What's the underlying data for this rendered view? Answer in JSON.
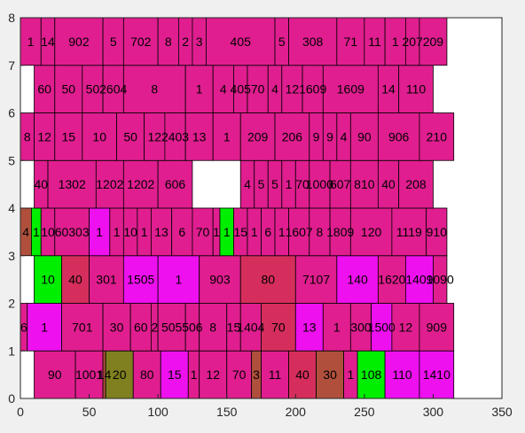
{
  "chart_data": {
    "type": "bar",
    "orientation": "horizontal-segments",
    "title": "",
    "xlabel": "",
    "ylabel": "",
    "xlim": [
      0,
      350
    ],
    "ylim": [
      0,
      8
    ],
    "grid": false,
    "legend": "none",
    "x_ticks": [
      0,
      50,
      100,
      150,
      200,
      250,
      300,
      350
    ],
    "y_ticks": [
      0,
      1,
      2,
      3,
      4,
      5,
      6,
      7,
      8
    ],
    "colors": {
      "pink": "#E01E8F",
      "magenta": "#EE10EE",
      "crimson": "#D62E5C",
      "brown": "#B0503C",
      "olive": "#808020",
      "green": "#00EE00",
      "plot_bg": "#ffffff",
      "figure_bg": "#f0f0f0",
      "axis": "#262626"
    },
    "segments": [
      {
        "row": 0,
        "x0": 10,
        "x1": 40,
        "color": "pink",
        "label": "90"
      },
      {
        "row": 0,
        "x0": 40,
        "x1": 60,
        "color": "pink",
        "label": "1001"
      },
      {
        "row": 0,
        "x0": 60,
        "x1": 62,
        "color": "brown",
        "label": "14"
      },
      {
        "row": 0,
        "x0": 62,
        "x1": 82,
        "color": "olive",
        "label": "20"
      },
      {
        "row": 0,
        "x0": 82,
        "x1": 102,
        "color": "pink",
        "label": "80"
      },
      {
        "row": 0,
        "x0": 102,
        "x1": 122,
        "color": "magenta",
        "label": "15"
      },
      {
        "row": 0,
        "x0": 122,
        "x1": 130,
        "color": "pink",
        "label": "1"
      },
      {
        "row": 0,
        "x0": 130,
        "x1": 150,
        "color": "pink",
        "label": "12"
      },
      {
        "row": 0,
        "x0": 150,
        "x1": 168,
        "color": "pink",
        "label": "70"
      },
      {
        "row": 0,
        "x0": 168,
        "x1": 175,
        "color": "brown",
        "label": "3"
      },
      {
        "row": 0,
        "x0": 175,
        "x1": 195,
        "color": "pink",
        "label": "11"
      },
      {
        "row": 0,
        "x0": 195,
        "x1": 215,
        "color": "crimson",
        "label": "40"
      },
      {
        "row": 0,
        "x0": 215,
        "x1": 235,
        "color": "brown",
        "label": "30"
      },
      {
        "row": 0,
        "x0": 235,
        "x1": 245,
        "color": "pink",
        "label": "1"
      },
      {
        "row": 0,
        "x0": 245,
        "x1": 265,
        "color": "green",
        "label": "108"
      },
      {
        "row": 0,
        "x0": 265,
        "x1": 290,
        "color": "magenta",
        "label": "110"
      },
      {
        "row": 0,
        "x0": 290,
        "x1": 315,
        "color": "magenta",
        "label": "1410"
      },
      {
        "row": 1,
        "x0": 0,
        "x1": 5,
        "color": "pink",
        "label": "6"
      },
      {
        "row": 1,
        "x0": 5,
        "x1": 30,
        "color": "magenta",
        "label": "1"
      },
      {
        "row": 1,
        "x0": 30,
        "x1": 60,
        "color": "pink",
        "label": "701"
      },
      {
        "row": 1,
        "x0": 60,
        "x1": 80,
        "color": "pink",
        "label": "30"
      },
      {
        "row": 1,
        "x0": 80,
        "x1": 95,
        "color": "pink",
        "label": "60"
      },
      {
        "row": 1,
        "x0": 95,
        "x1": 100,
        "color": "pink",
        "label": "2"
      },
      {
        "row": 1,
        "x0": 100,
        "x1": 120,
        "color": "pink",
        "label": "505"
      },
      {
        "row": 1,
        "x0": 120,
        "x1": 130,
        "color": "pink",
        "label": "506"
      },
      {
        "row": 1,
        "x0": 130,
        "x1": 150,
        "color": "pink",
        "label": "8"
      },
      {
        "row": 1,
        "x0": 150,
        "x1": 160,
        "color": "pink",
        "label": "15"
      },
      {
        "row": 1,
        "x0": 160,
        "x1": 175,
        "color": "pink",
        "label": "1404"
      },
      {
        "row": 1,
        "x0": 175,
        "x1": 200,
        "color": "crimson",
        "label": "70"
      },
      {
        "row": 1,
        "x0": 200,
        "x1": 220,
        "color": "magenta",
        "label": "13"
      },
      {
        "row": 1,
        "x0": 220,
        "x1": 240,
        "color": "pink",
        "label": "1"
      },
      {
        "row": 1,
        "x0": 240,
        "x1": 255,
        "color": "pink",
        "label": "300"
      },
      {
        "row": 1,
        "x0": 255,
        "x1": 270,
        "color": "magenta",
        "label": "1500"
      },
      {
        "row": 1,
        "x0": 270,
        "x1": 290,
        "color": "pink",
        "label": "12"
      },
      {
        "row": 1,
        "x0": 290,
        "x1": 315,
        "color": "pink",
        "label": "909"
      },
      {
        "row": 2,
        "x0": 10,
        "x1": 30,
        "color": "green",
        "label": "10"
      },
      {
        "row": 2,
        "x0": 30,
        "x1": 50,
        "color": "crimson",
        "label": "40"
      },
      {
        "row": 2,
        "x0": 50,
        "x1": 75,
        "color": "pink",
        "label": "301"
      },
      {
        "row": 2,
        "x0": 75,
        "x1": 100,
        "color": "magenta",
        "label": "1505"
      },
      {
        "row": 2,
        "x0": 100,
        "x1": 130,
        "color": "magenta",
        "label": "1"
      },
      {
        "row": 2,
        "x0": 130,
        "x1": 160,
        "color": "pink",
        "label": "903"
      },
      {
        "row": 2,
        "x0": 160,
        "x1": 200,
        "color": "crimson",
        "label": "80"
      },
      {
        "row": 2,
        "x0": 200,
        "x1": 230,
        "color": "pink",
        "label": "7107"
      },
      {
        "row": 2,
        "x0": 230,
        "x1": 260,
        "color": "magenta",
        "label": "140"
      },
      {
        "row": 2,
        "x0": 260,
        "x1": 280,
        "color": "pink",
        "label": "1620"
      },
      {
        "row": 2,
        "x0": 280,
        "x1": 300,
        "color": "magenta",
        "label": "1409"
      },
      {
        "row": 2,
        "x0": 300,
        "x1": 310,
        "color": "pink",
        "label": "1090"
      },
      {
        "row": 3,
        "x0": 0,
        "x1": 8,
        "color": "brown",
        "label": "4"
      },
      {
        "row": 3,
        "x0": 8,
        "x1": 15,
        "color": "green",
        "label": "1"
      },
      {
        "row": 3,
        "x0": 15,
        "x1": 25,
        "color": "pink",
        "label": "10"
      },
      {
        "row": 3,
        "x0": 25,
        "x1": 50,
        "color": "pink",
        "label": "60303"
      },
      {
        "row": 3,
        "x0": 50,
        "x1": 65,
        "color": "magenta",
        "label": "1"
      },
      {
        "row": 3,
        "x0": 65,
        "x1": 75,
        "color": "pink",
        "label": "1"
      },
      {
        "row": 3,
        "x0": 75,
        "x1": 85,
        "color": "pink",
        "label": "10"
      },
      {
        "row": 3,
        "x0": 85,
        "x1": 95,
        "color": "pink",
        "label": "1"
      },
      {
        "row": 3,
        "x0": 95,
        "x1": 110,
        "color": "pink",
        "label": "13"
      },
      {
        "row": 3,
        "x0": 110,
        "x1": 125,
        "color": "pink",
        "label": "6"
      },
      {
        "row": 3,
        "x0": 125,
        "x1": 140,
        "color": "pink",
        "label": "70"
      },
      {
        "row": 3,
        "x0": 140,
        "x1": 145,
        "color": "pink",
        "label": "1"
      },
      {
        "row": 3,
        "x0": 145,
        "x1": 155,
        "color": "green",
        "label": "1"
      },
      {
        "row": 3,
        "x0": 155,
        "x1": 165,
        "color": "pink",
        "label": "15"
      },
      {
        "row": 3,
        "x0": 165,
        "x1": 175,
        "color": "pink",
        "label": "1"
      },
      {
        "row": 3,
        "x0": 175,
        "x1": 185,
        "color": "pink",
        "label": "6"
      },
      {
        "row": 3,
        "x0": 185,
        "x1": 195,
        "color": "pink",
        "label": "1"
      },
      {
        "row": 3,
        "x0": 195,
        "x1": 210,
        "color": "pink",
        "label": "1607"
      },
      {
        "row": 3,
        "x0": 210,
        "x1": 225,
        "color": "pink",
        "label": "8"
      },
      {
        "row": 3,
        "x0": 225,
        "x1": 240,
        "color": "pink",
        "label": "1809"
      },
      {
        "row": 3,
        "x0": 240,
        "x1": 270,
        "color": "pink",
        "label": "120"
      },
      {
        "row": 3,
        "x0": 270,
        "x1": 295,
        "color": "pink",
        "label": "1119"
      },
      {
        "row": 3,
        "x0": 295,
        "x1": 310,
        "color": "pink",
        "label": "910"
      },
      {
        "row": 4,
        "x0": 10,
        "x1": 20,
        "color": "pink",
        "label": "40"
      },
      {
        "row": 4,
        "x0": 20,
        "x1": 55,
        "color": "pink",
        "label": "1302"
      },
      {
        "row": 4,
        "x0": 55,
        "x1": 75,
        "color": "pink",
        "label": "1202"
      },
      {
        "row": 4,
        "x0": 75,
        "x1": 100,
        "color": "pink",
        "label": "1202"
      },
      {
        "row": 4,
        "x0": 100,
        "x1": 125,
        "color": "pink",
        "label": "606"
      },
      {
        "row": 4,
        "x0": 160,
        "x1": 170,
        "color": "pink",
        "label": "4"
      },
      {
        "row": 4,
        "x0": 170,
        "x1": 180,
        "color": "pink",
        "label": "5"
      },
      {
        "row": 4,
        "x0": 180,
        "x1": 190,
        "color": "pink",
        "label": "5"
      },
      {
        "row": 4,
        "x0": 190,
        "x1": 200,
        "color": "pink",
        "label": "1"
      },
      {
        "row": 4,
        "x0": 200,
        "x1": 210,
        "color": "pink",
        "label": "70"
      },
      {
        "row": 4,
        "x0": 210,
        "x1": 225,
        "color": "pink",
        "label": "1000"
      },
      {
        "row": 4,
        "x0": 225,
        "x1": 240,
        "color": "pink",
        "label": "607"
      },
      {
        "row": 4,
        "x0": 240,
        "x1": 260,
        "color": "pink",
        "label": "810"
      },
      {
        "row": 4,
        "x0": 260,
        "x1": 275,
        "color": "pink",
        "label": "40"
      },
      {
        "row": 4,
        "x0": 275,
        "x1": 300,
        "color": "pink",
        "label": "208"
      },
      {
        "row": 5,
        "x0": 0,
        "x1": 10,
        "color": "pink",
        "label": "8"
      },
      {
        "row": 5,
        "x0": 10,
        "x1": 25,
        "color": "pink",
        "label": "12"
      },
      {
        "row": 5,
        "x0": 25,
        "x1": 45,
        "color": "pink",
        "label": "15"
      },
      {
        "row": 5,
        "x0": 45,
        "x1": 70,
        "color": "pink",
        "label": "10"
      },
      {
        "row": 5,
        "x0": 70,
        "x1": 90,
        "color": "pink",
        "label": "50"
      },
      {
        "row": 5,
        "x0": 90,
        "x1": 105,
        "color": "pink",
        "label": "12"
      },
      {
        "row": 5,
        "x0": 105,
        "x1": 120,
        "color": "pink",
        "label": "2403"
      },
      {
        "row": 5,
        "x0": 120,
        "x1": 140,
        "color": "pink",
        "label": "13"
      },
      {
        "row": 5,
        "x0": 140,
        "x1": 160,
        "color": "pink",
        "label": "1"
      },
      {
        "row": 5,
        "x0": 160,
        "x1": 185,
        "color": "pink",
        "label": "209"
      },
      {
        "row": 5,
        "x0": 185,
        "x1": 210,
        "color": "pink",
        "label": "206"
      },
      {
        "row": 5,
        "x0": 210,
        "x1": 220,
        "color": "pink",
        "label": "9"
      },
      {
        "row": 5,
        "x0": 220,
        "x1": 230,
        "color": "pink",
        "label": "9"
      },
      {
        "row": 5,
        "x0": 230,
        "x1": 240,
        "color": "pink",
        "label": "4"
      },
      {
        "row": 5,
        "x0": 240,
        "x1": 260,
        "color": "pink",
        "label": "90"
      },
      {
        "row": 5,
        "x0": 260,
        "x1": 290,
        "color": "pink",
        "label": "906"
      },
      {
        "row": 5,
        "x0": 290,
        "x1": 315,
        "color": "pink",
        "label": "210"
      },
      {
        "row": 6,
        "x0": 10,
        "x1": 25,
        "color": "pink",
        "label": "60"
      },
      {
        "row": 6,
        "x0": 25,
        "x1": 45,
        "color": "pink",
        "label": "50"
      },
      {
        "row": 6,
        "x0": 45,
        "x1": 60,
        "color": "pink",
        "label": "50"
      },
      {
        "row": 6,
        "x0": 60,
        "x1": 75,
        "color": "pink",
        "label": "2604"
      },
      {
        "row": 6,
        "x0": 75,
        "x1": 120,
        "color": "pink",
        "label": "8"
      },
      {
        "row": 6,
        "x0": 120,
        "x1": 140,
        "color": "pink",
        "label": "1"
      },
      {
        "row": 6,
        "x0": 140,
        "x1": 155,
        "color": "pink",
        "label": "4"
      },
      {
        "row": 6,
        "x0": 155,
        "x1": 165,
        "color": "pink",
        "label": "405"
      },
      {
        "row": 6,
        "x0": 165,
        "x1": 180,
        "color": "pink",
        "label": "70"
      },
      {
        "row": 6,
        "x0": 180,
        "x1": 190,
        "color": "pink",
        "label": "4"
      },
      {
        "row": 6,
        "x0": 190,
        "x1": 205,
        "color": "pink",
        "label": "12"
      },
      {
        "row": 6,
        "x0": 205,
        "x1": 220,
        "color": "pink",
        "label": "1609"
      },
      {
        "row": 6,
        "x0": 220,
        "x1": 260,
        "color": "pink",
        "label": "1609"
      },
      {
        "row": 6,
        "x0": 260,
        "x1": 275,
        "color": "pink",
        "label": "14"
      },
      {
        "row": 6,
        "x0": 275,
        "x1": 300,
        "color": "pink",
        "label": "110"
      },
      {
        "row": 7,
        "x0": 0,
        "x1": 15,
        "color": "pink",
        "label": "1"
      },
      {
        "row": 7,
        "x0": 15,
        "x1": 25,
        "color": "pink",
        "label": "14"
      },
      {
        "row": 7,
        "x0": 25,
        "x1": 60,
        "color": "pink",
        "label": "902"
      },
      {
        "row": 7,
        "x0": 60,
        "x1": 75,
        "color": "pink",
        "label": "5"
      },
      {
        "row": 7,
        "x0": 75,
        "x1": 100,
        "color": "pink",
        "label": "702"
      },
      {
        "row": 7,
        "x0": 100,
        "x1": 115,
        "color": "pink",
        "label": "8"
      },
      {
        "row": 7,
        "x0": 115,
        "x1": 125,
        "color": "pink",
        "label": "2"
      },
      {
        "row": 7,
        "x0": 125,
        "x1": 135,
        "color": "pink",
        "label": "3"
      },
      {
        "row": 7,
        "x0": 135,
        "x1": 185,
        "color": "pink",
        "label": "405"
      },
      {
        "row": 7,
        "x0": 185,
        "x1": 195,
        "color": "pink",
        "label": "5"
      },
      {
        "row": 7,
        "x0": 195,
        "x1": 230,
        "color": "pink",
        "label": "308"
      },
      {
        "row": 7,
        "x0": 230,
        "x1": 250,
        "color": "pink",
        "label": "71"
      },
      {
        "row": 7,
        "x0": 250,
        "x1": 265,
        "color": "pink",
        "label": "11"
      },
      {
        "row": 7,
        "x0": 265,
        "x1": 280,
        "color": "pink",
        "label": "1"
      },
      {
        "row": 7,
        "x0": 280,
        "x1": 290,
        "color": "pink",
        "label": "207"
      },
      {
        "row": 7,
        "x0": 290,
        "x1": 310,
        "color": "pink",
        "label": "209"
      }
    ]
  }
}
